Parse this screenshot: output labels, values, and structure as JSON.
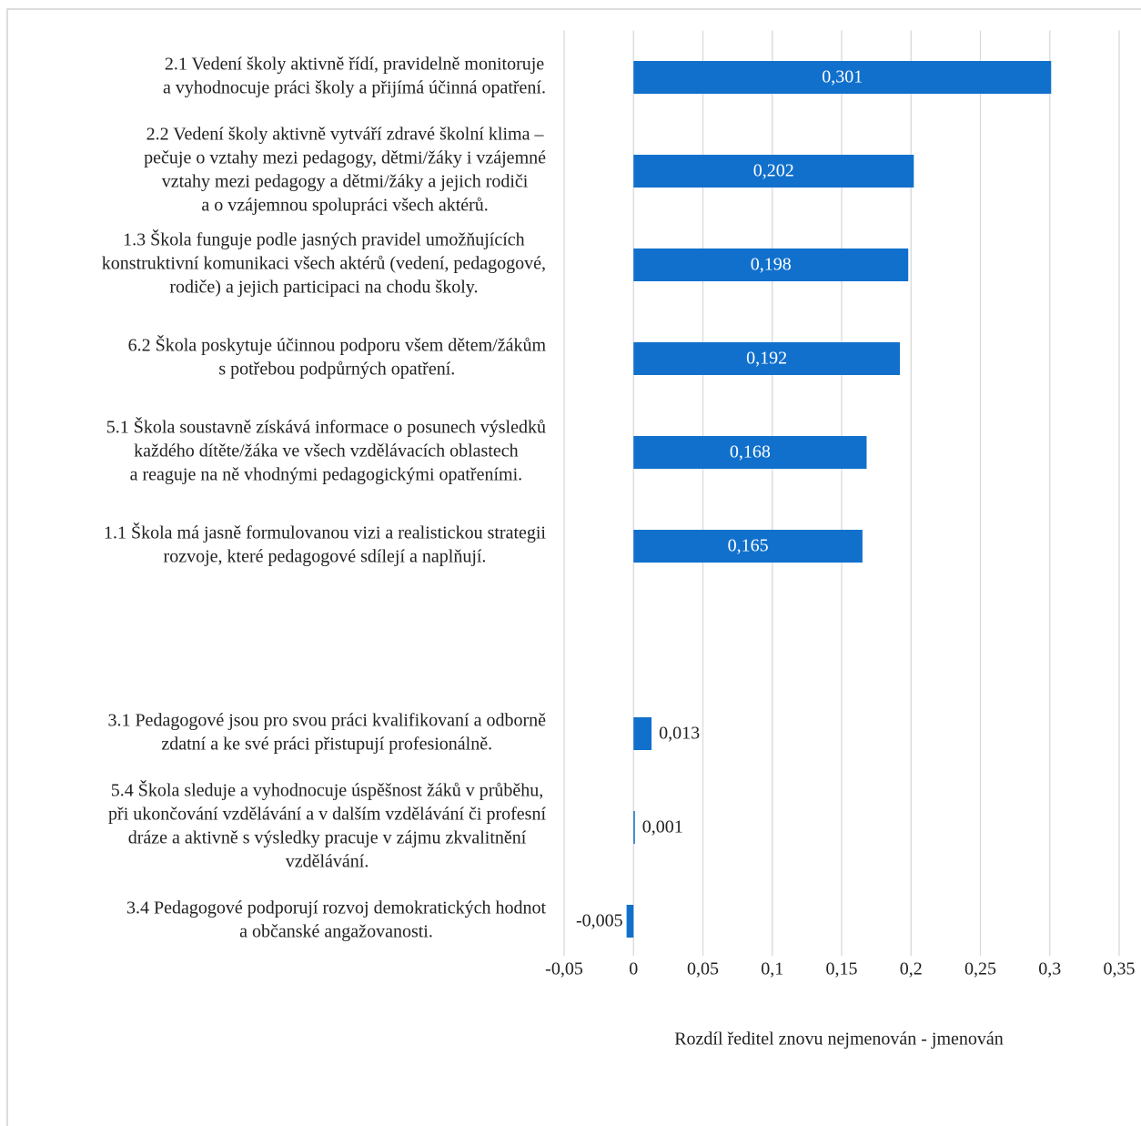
{
  "chart_data": {
    "type": "hbar",
    "x_label": "Rozdíl ředitel znovu nejmenován - jmenován",
    "categories": [
      [
        "2.1 Vedení školy aktivně řídí, pravidelně monitoruje",
        "a vyhodnocuje práci školy a přijímá účinná opatření."
      ],
      [
        "2.2 Vedení školy aktivně vytváří zdravé školní klima –",
        "pečuje o vztahy mezi pedagogy, dětmi/žáky i vzájemné",
        "vztahy mezi pedagogy a dětmi/žáky a jejich rodiči",
        "a o vzájemnou spolupráci všech aktérů."
      ],
      [
        "1.3 Škola funguje podle jasných pravidel umožňujících",
        "konstruktivní komunikaci všech aktérů (vedení, pedagogové,",
        "rodiče) a jejich participaci na chodu školy."
      ],
      [
        "6.2 Škola poskytuje účinnou podporu všem dětem/žákům",
        "s potřebou podpůrných opatření."
      ],
      [
        "5.1 Škola soustavně získává informace o posunech výsledků",
        "každého dítěte/žáka ve všech vzdělávacích oblastech",
        "a reaguje na ně vhodnými pedagogickými opatřeními."
      ],
      [
        "1.1 Škola má jasně formulovanou vizi a realistickou strategii",
        "rozvoje, které pedagogové sdílejí a naplňují."
      ],
      null,
      [
        "3.1 Pedagogové jsou pro svou práci kvalifikovaní a odborně",
        "zdatní a ke své práci přistupují profesionálně."
      ],
      [
        "5.4 Škola sleduje a vyhodnocuje úspěšnost žáků v průběhu,",
        "při ukončování vzdělávání a v dalším vzdělávání či profesní",
        "dráze a aktivně s výsledky pracuje v zájmu zkvalitnění",
        "vzdělávání."
      ],
      [
        "3.4 Pedagogové podporují rozvoj demokratických hodnot",
        "a občanské angažovanosti."
      ]
    ],
    "values": [
      0.301,
      0.202,
      0.198,
      0.192,
      0.168,
      0.165,
      null,
      0.013,
      0.001,
      -0.005
    ],
    "value_labels": [
      "0,301",
      "0,202",
      "0,198",
      "0,192",
      "0,168",
      "0,165",
      null,
      "0,013",
      "0,001",
      "-0,005"
    ],
    "color": "#1170cc",
    "xlim": [
      -0.05,
      0.35
    ],
    "xticks": [
      {
        "value": -0.05,
        "label": "-0,05"
      },
      0,
      {
        "value": 0.05,
        "label": "0,05"
      },
      {
        "value": 0.1,
        "label": "0,1"
      },
      {
        "value": 0.15,
        "label": "0,15"
      },
      {
        "value": 0.2,
        "label": "0,2"
      },
      {
        "value": 0.25,
        "label": "0,25"
      },
      {
        "value": 0.3,
        "label": "0,3"
      },
      {
        "value": 0.35,
        "label": "0,35"
      }
    ],
    "grid": true
  }
}
